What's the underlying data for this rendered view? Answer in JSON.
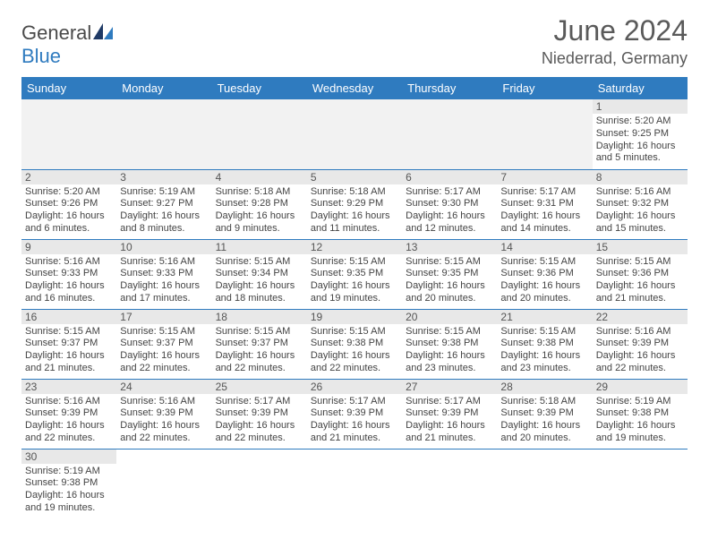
{
  "brand": {
    "part1": "General",
    "part2": "Blue"
  },
  "title": "June 2024",
  "location": "Niederrad, Germany",
  "colors": {
    "header_bg": "#2f7bbf",
    "header_fg": "#ffffff",
    "daynum_bg": "#e8e8e8",
    "rule": "#2f7bbf",
    "blank_bg": "#f2f2f2",
    "text": "#444444"
  },
  "weekdays": [
    "Sunday",
    "Monday",
    "Tuesday",
    "Wednesday",
    "Thursday",
    "Friday",
    "Saturday"
  ],
  "weeks": [
    [
      null,
      null,
      null,
      null,
      null,
      null,
      {
        "n": "1",
        "sr": "Sunrise: 5:20 AM",
        "ss": "Sunset: 9:25 PM",
        "dl": "Daylight: 16 hours and 5 minutes."
      }
    ],
    [
      {
        "n": "2",
        "sr": "Sunrise: 5:20 AM",
        "ss": "Sunset: 9:26 PM",
        "dl": "Daylight: 16 hours and 6 minutes."
      },
      {
        "n": "3",
        "sr": "Sunrise: 5:19 AM",
        "ss": "Sunset: 9:27 PM",
        "dl": "Daylight: 16 hours and 8 minutes."
      },
      {
        "n": "4",
        "sr": "Sunrise: 5:18 AM",
        "ss": "Sunset: 9:28 PM",
        "dl": "Daylight: 16 hours and 9 minutes."
      },
      {
        "n": "5",
        "sr": "Sunrise: 5:18 AM",
        "ss": "Sunset: 9:29 PM",
        "dl": "Daylight: 16 hours and 11 minutes."
      },
      {
        "n": "6",
        "sr": "Sunrise: 5:17 AM",
        "ss": "Sunset: 9:30 PM",
        "dl": "Daylight: 16 hours and 12 minutes."
      },
      {
        "n": "7",
        "sr": "Sunrise: 5:17 AM",
        "ss": "Sunset: 9:31 PM",
        "dl": "Daylight: 16 hours and 14 minutes."
      },
      {
        "n": "8",
        "sr": "Sunrise: 5:16 AM",
        "ss": "Sunset: 9:32 PM",
        "dl": "Daylight: 16 hours and 15 minutes."
      }
    ],
    [
      {
        "n": "9",
        "sr": "Sunrise: 5:16 AM",
        "ss": "Sunset: 9:33 PM",
        "dl": "Daylight: 16 hours and 16 minutes."
      },
      {
        "n": "10",
        "sr": "Sunrise: 5:16 AM",
        "ss": "Sunset: 9:33 PM",
        "dl": "Daylight: 16 hours and 17 minutes."
      },
      {
        "n": "11",
        "sr": "Sunrise: 5:15 AM",
        "ss": "Sunset: 9:34 PM",
        "dl": "Daylight: 16 hours and 18 minutes."
      },
      {
        "n": "12",
        "sr": "Sunrise: 5:15 AM",
        "ss": "Sunset: 9:35 PM",
        "dl": "Daylight: 16 hours and 19 minutes."
      },
      {
        "n": "13",
        "sr": "Sunrise: 5:15 AM",
        "ss": "Sunset: 9:35 PM",
        "dl": "Daylight: 16 hours and 20 minutes."
      },
      {
        "n": "14",
        "sr": "Sunrise: 5:15 AM",
        "ss": "Sunset: 9:36 PM",
        "dl": "Daylight: 16 hours and 20 minutes."
      },
      {
        "n": "15",
        "sr": "Sunrise: 5:15 AM",
        "ss": "Sunset: 9:36 PM",
        "dl": "Daylight: 16 hours and 21 minutes."
      }
    ],
    [
      {
        "n": "16",
        "sr": "Sunrise: 5:15 AM",
        "ss": "Sunset: 9:37 PM",
        "dl": "Daylight: 16 hours and 21 minutes."
      },
      {
        "n": "17",
        "sr": "Sunrise: 5:15 AM",
        "ss": "Sunset: 9:37 PM",
        "dl": "Daylight: 16 hours and 22 minutes."
      },
      {
        "n": "18",
        "sr": "Sunrise: 5:15 AM",
        "ss": "Sunset: 9:37 PM",
        "dl": "Daylight: 16 hours and 22 minutes."
      },
      {
        "n": "19",
        "sr": "Sunrise: 5:15 AM",
        "ss": "Sunset: 9:38 PM",
        "dl": "Daylight: 16 hours and 22 minutes."
      },
      {
        "n": "20",
        "sr": "Sunrise: 5:15 AM",
        "ss": "Sunset: 9:38 PM",
        "dl": "Daylight: 16 hours and 23 minutes."
      },
      {
        "n": "21",
        "sr": "Sunrise: 5:15 AM",
        "ss": "Sunset: 9:38 PM",
        "dl": "Daylight: 16 hours and 23 minutes."
      },
      {
        "n": "22",
        "sr": "Sunrise: 5:16 AM",
        "ss": "Sunset: 9:39 PM",
        "dl": "Daylight: 16 hours and 22 minutes."
      }
    ],
    [
      {
        "n": "23",
        "sr": "Sunrise: 5:16 AM",
        "ss": "Sunset: 9:39 PM",
        "dl": "Daylight: 16 hours and 22 minutes."
      },
      {
        "n": "24",
        "sr": "Sunrise: 5:16 AM",
        "ss": "Sunset: 9:39 PM",
        "dl": "Daylight: 16 hours and 22 minutes."
      },
      {
        "n": "25",
        "sr": "Sunrise: 5:17 AM",
        "ss": "Sunset: 9:39 PM",
        "dl": "Daylight: 16 hours and 22 minutes."
      },
      {
        "n": "26",
        "sr": "Sunrise: 5:17 AM",
        "ss": "Sunset: 9:39 PM",
        "dl": "Daylight: 16 hours and 21 minutes."
      },
      {
        "n": "27",
        "sr": "Sunrise: 5:17 AM",
        "ss": "Sunset: 9:39 PM",
        "dl": "Daylight: 16 hours and 21 minutes."
      },
      {
        "n": "28",
        "sr": "Sunrise: 5:18 AM",
        "ss": "Sunset: 9:39 PM",
        "dl": "Daylight: 16 hours and 20 minutes."
      },
      {
        "n": "29",
        "sr": "Sunrise: 5:19 AM",
        "ss": "Sunset: 9:38 PM",
        "dl": "Daylight: 16 hours and 19 minutes."
      }
    ],
    [
      {
        "n": "30",
        "sr": "Sunrise: 5:19 AM",
        "ss": "Sunset: 9:38 PM",
        "dl": "Daylight: 16 hours and 19 minutes."
      },
      null,
      null,
      null,
      null,
      null,
      null
    ]
  ]
}
